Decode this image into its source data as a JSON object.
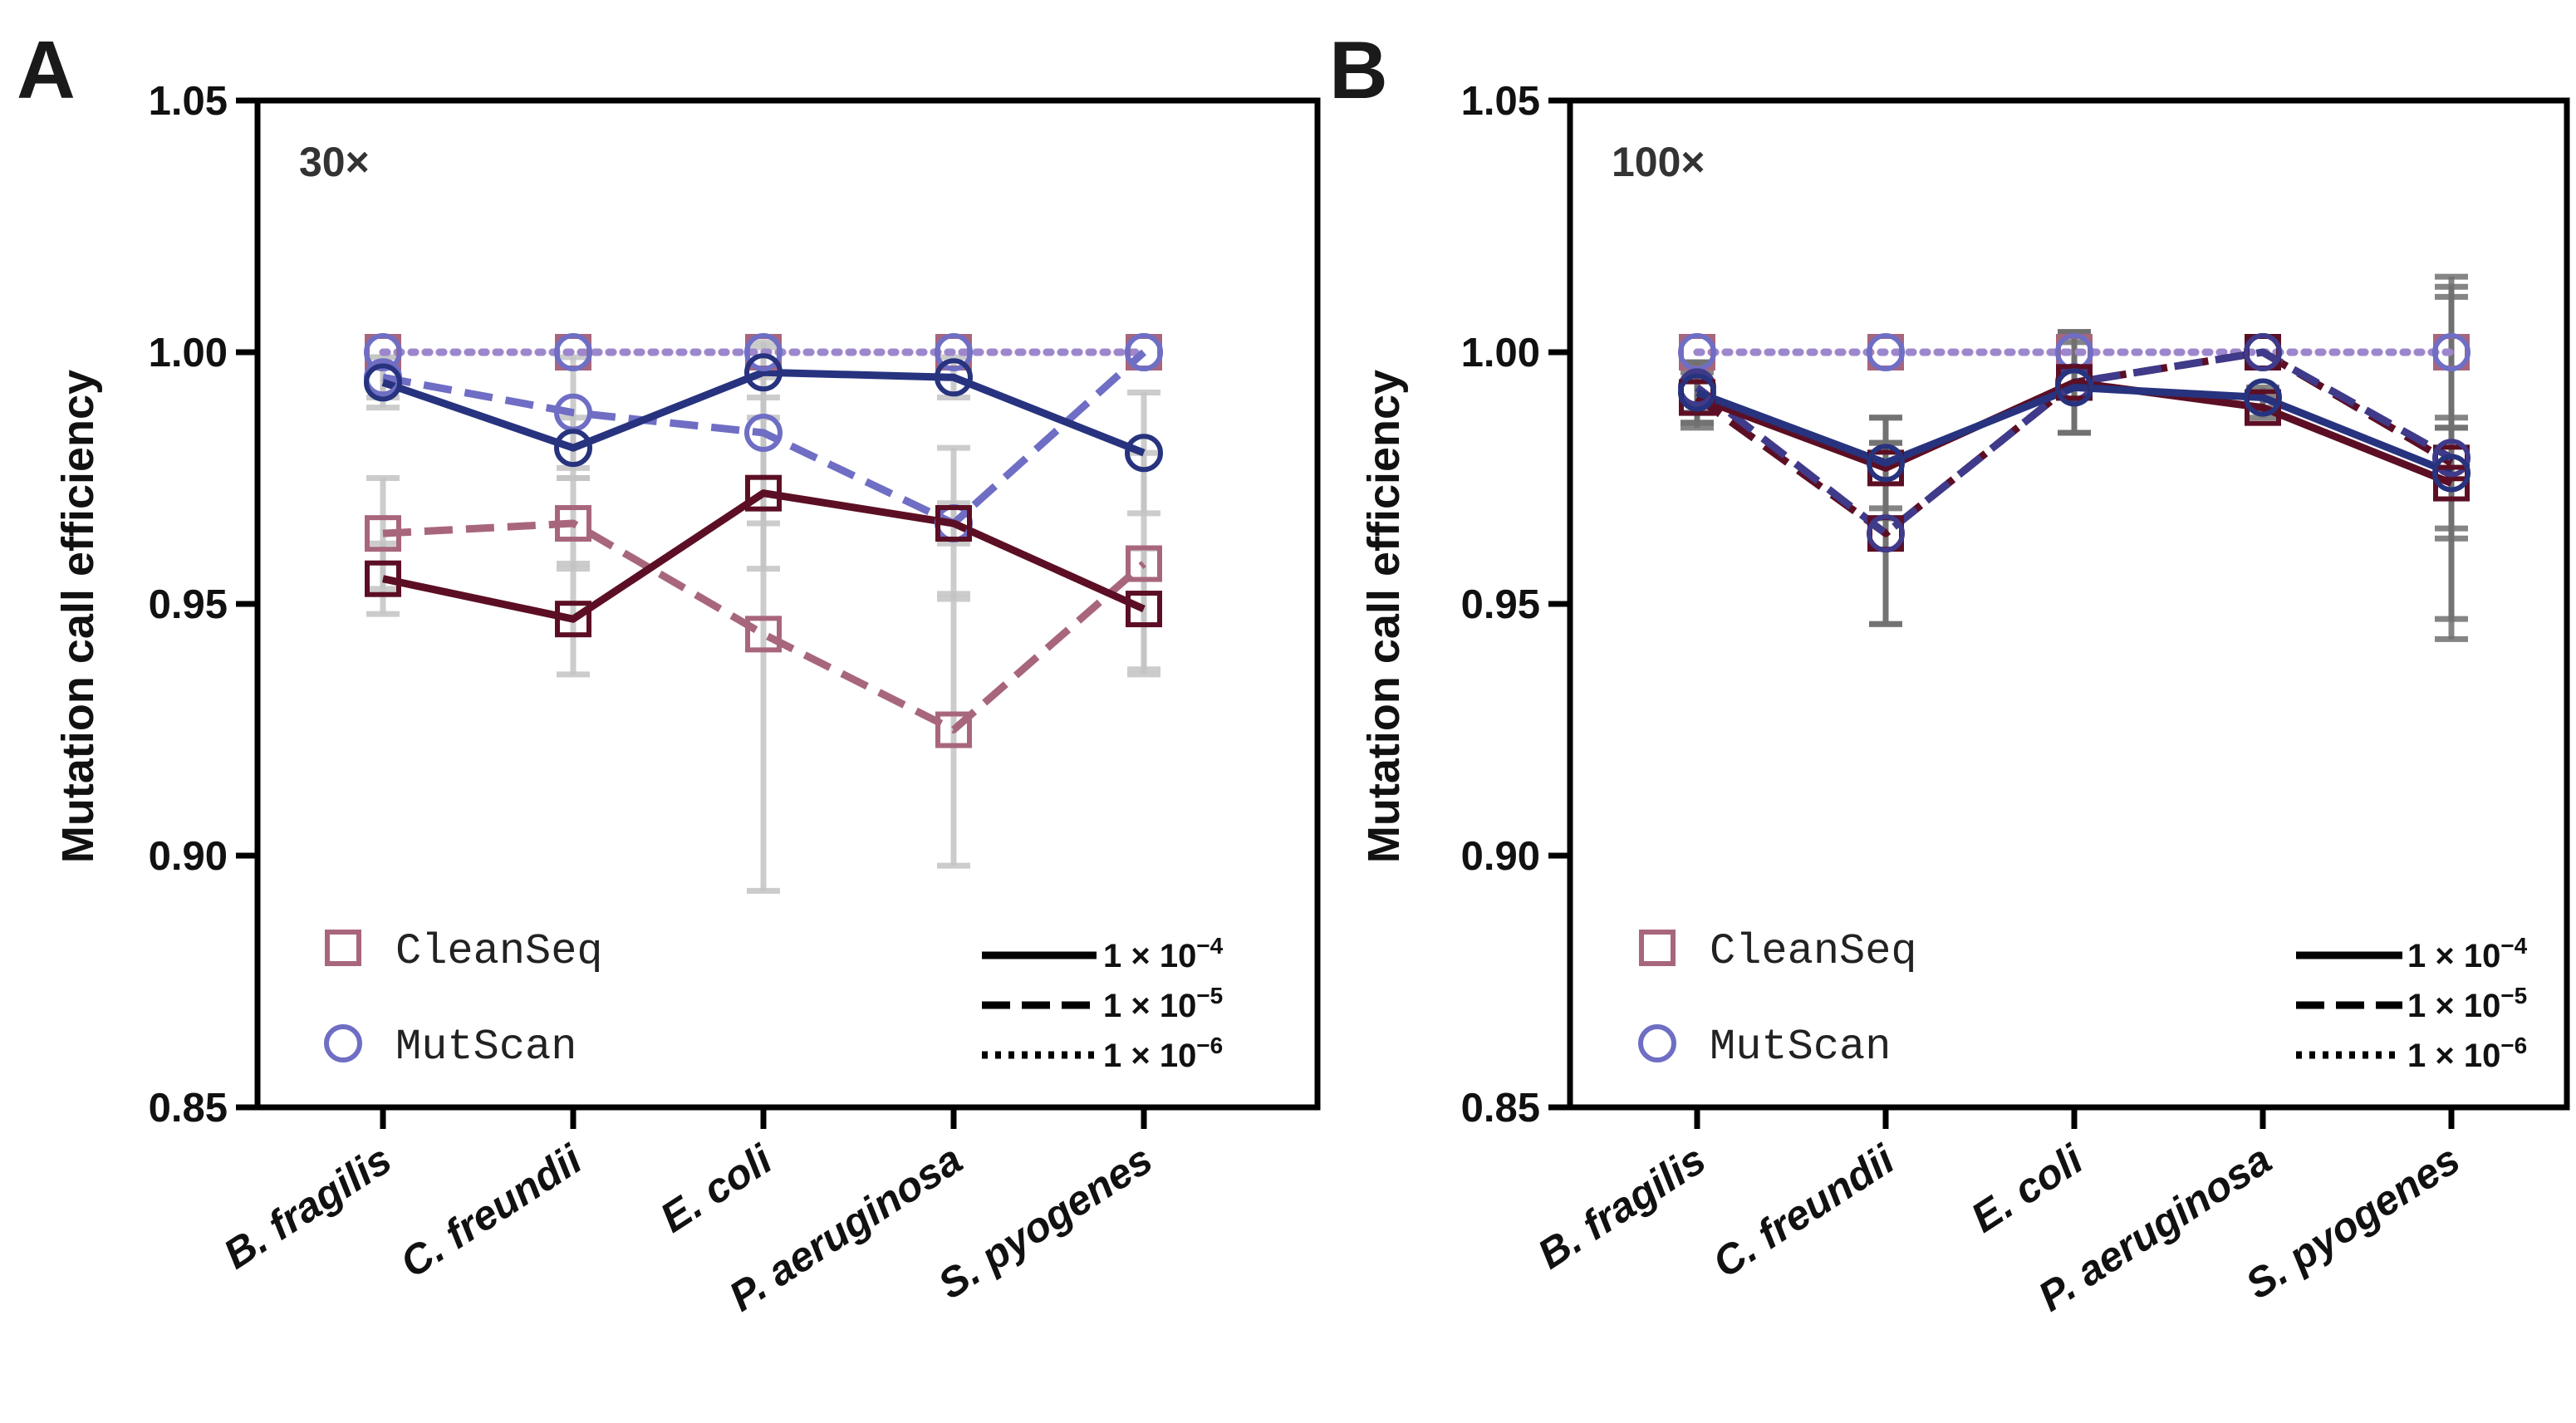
{
  "figure": {
    "ylabel": "Mutation call efficiency",
    "yticks": [
      "0.85",
      "0.90",
      "0.95",
      "1.00",
      "1.05"
    ],
    "colors": {
      "cleanseq_dark": "#5c0f24",
      "cleanseq_light": "#a8667c",
      "mutscan_dark": "#27337e",
      "mutscan_light": "#6f6ec4",
      "mutscan_mid": "#3f3a8a",
      "dotted": "#9d87cc",
      "errorbar_light": "#c4c4c4",
      "errorbar_dark": "#707070",
      "axis": "#000000"
    }
  },
  "legend": {
    "cleanseq": "CleanSeq",
    "mutscan": "MutScan",
    "rate1": "1 × 10",
    "rate1_exp": "−4",
    "rate2": "1 × 10",
    "rate2_exp": "−5",
    "rate3": "1 × 10",
    "rate3_exp": "−6"
  },
  "chart_data": [
    {
      "type": "line",
      "panel": "A",
      "title": "30×",
      "xlabel": "",
      "ylabel": "Mutation call efficiency",
      "ylim": [
        0.85,
        1.05
      ],
      "categories": [
        "B. fragilis",
        "C. freundii",
        "E. coli",
        "P. aeruginosa",
        "S. pyogenes"
      ],
      "series": [
        {
          "name": "CleanSeq 1 × 10−4",
          "tool": "CleanSeq",
          "rate": "1e-4",
          "values": [
            0.955,
            0.947,
            0.972,
            0.966,
            0.949
          ],
          "err": [
            0.007,
            0.011,
            0.015,
            0.015,
            0.012
          ]
        },
        {
          "name": "CleanSeq 1 × 10−5",
          "tool": "CleanSeq",
          "rate": "1e-5",
          "values": [
            0.964,
            0.966,
            0.944,
            0.925,
            0.958
          ],
          "err": [
            0.011,
            0.009,
            0.051,
            0.027,
            0.022
          ]
        },
        {
          "name": "CleanSeq 1 × 10−6",
          "tool": "CleanSeq",
          "rate": "1e-6",
          "values": [
            1.0,
            1.0,
            1.0,
            1.0,
            1.0
          ],
          "err": [
            0,
            0,
            0,
            0,
            0
          ]
        },
        {
          "name": "MutScan 1 × 10−4",
          "tool": "MutScan",
          "rate": "1e-4",
          "values": [
            0.994,
            0.981,
            0.996,
            0.995,
            0.98
          ],
          "err": [
            0.005,
            0.006,
            0.005,
            0.004,
            0.012
          ]
        },
        {
          "name": "MutScan 1 × 10−5",
          "tool": "MutScan",
          "rate": "1e-5",
          "values": [
            0.995,
            0.988,
            0.984,
            0.966,
            1.0
          ],
          "err": [
            0.004,
            0.011,
            0.018,
            0.004,
            0.0
          ]
        },
        {
          "name": "MutScan 1 × 10−6",
          "tool": "MutScan",
          "rate": "1e-6",
          "values": [
            1.0,
            1.0,
            1.0,
            1.0,
            1.0
          ],
          "err": [
            0,
            0,
            0,
            0,
            0
          ]
        }
      ]
    },
    {
      "type": "line",
      "panel": "B",
      "title": "100×",
      "xlabel": "",
      "ylabel": "Mutation call efficiency",
      "ylim": [
        0.85,
        1.05
      ],
      "categories": [
        "B. fragilis",
        "C. freundii",
        "E. coli",
        "P. aeruginosa",
        "S. pyogenes"
      ],
      "series": [
        {
          "name": "CleanSeq 1 × 10−4",
          "tool": "CleanSeq",
          "rate": "1e-4",
          "values": [
            0.991,
            0.977,
            0.994,
            0.989,
            0.974
          ],
          "err": [
            0.006,
            0.01,
            0.01,
            0.002,
            0.011
          ]
        },
        {
          "name": "CleanSeq 1 × 10−5",
          "tool": "CleanSeq",
          "rate": "1e-5",
          "values": [
            0.991,
            0.964,
            0.994,
            1.0,
            0.978
          ],
          "err": [
            0.005,
            0.018,
            0.01,
            0.0,
            0.035
          ]
        },
        {
          "name": "CleanSeq 1 × 10−6",
          "tool": "CleanSeq",
          "rate": "1e-6",
          "values": [
            1.0,
            1.0,
            1.0,
            1.0,
            1.0
          ],
          "err": [
            0,
            0,
            0,
            0,
            0.015
          ]
        },
        {
          "name": "MutScan 1 × 10−4",
          "tool": "MutScan",
          "rate": "1e-4",
          "values": [
            0.992,
            0.978,
            0.993,
            0.991,
            0.976
          ],
          "err": [
            0.006,
            0.009,
            0.009,
            0.002,
            0.011
          ]
        },
        {
          "name": "MutScan 1 × 10−5",
          "tool": "MutScan",
          "rate": "1e-5",
          "values": [
            0.993,
            0.964,
            0.994,
            1.0,
            0.979
          ],
          "err": [
            0.005,
            0.018,
            0.01,
            0.0,
            0.032
          ]
        },
        {
          "name": "MutScan 1 × 10−6",
          "tool": "MutScan",
          "rate": "1e-6",
          "values": [
            1.0,
            1.0,
            1.0,
            1.0,
            1.0
          ],
          "err": [
            0,
            0,
            0,
            0,
            0
          ]
        }
      ]
    }
  ]
}
